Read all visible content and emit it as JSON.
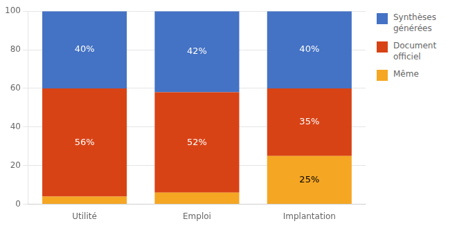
{
  "chart_data": {
    "type": "bar",
    "categories": [
      "Utilité",
      "Emploi",
      "Implantation"
    ],
    "series": [
      {
        "name": "Même",
        "color": "#F5A623",
        "values": [
          4,
          6,
          25
        ],
        "value_labels": [
          null,
          null,
          "25%"
        ]
      },
      {
        "name": "Document\nofficiel",
        "color": "#D84315",
        "values": [
          56,
          52,
          35
        ],
        "value_labels": [
          "56%",
          "52%",
          "35%"
        ]
      },
      {
        "name": "Synthèses\ngénérées",
        "color": "#4472C4",
        "values": [
          40,
          42,
          40
        ],
        "value_labels": [
          "40%",
          "42%",
          "40%"
        ]
      }
    ],
    "stacked": true,
    "ylim": [
      0,
      100
    ],
    "yticks": [
      0,
      20,
      40,
      60,
      80,
      100
    ],
    "grid": true,
    "legend": "right",
    "data_labels": true
  }
}
